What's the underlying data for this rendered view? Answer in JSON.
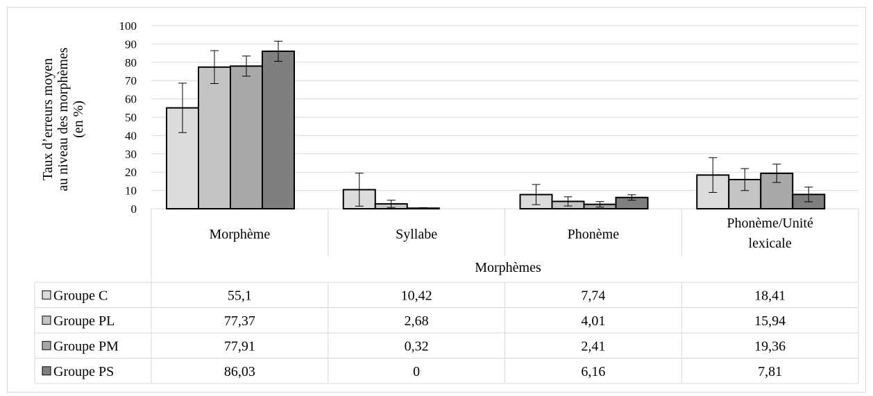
{
  "chart_data": {
    "type": "bar",
    "ylabel_lines": [
      "Taux d’erreurs moyen",
      "au niveau des morphèmes",
      "(en %)"
    ],
    "xlabel": "Morphèmes",
    "categories": [
      "Morphème",
      "Syllabe",
      "Phonème",
      "Phonème/Unité lexicale"
    ],
    "category_lines": [
      [
        "Morphème"
      ],
      [
        "Syllabe"
      ],
      [
        "Phonème"
      ],
      [
        "Phonème/Unité",
        "lexicale"
      ]
    ],
    "ylim": [
      0,
      100
    ],
    "yticks": [
      0,
      10,
      20,
      30,
      40,
      50,
      60,
      70,
      80,
      90,
      100
    ],
    "grid": true,
    "series": [
      {
        "name": "Groupe C",
        "color": "#dcdcdc",
        "values": [
          55.1,
          10.42,
          7.74,
          18.41
        ],
        "value_labels": [
          "55,1",
          "10,42",
          "7,74",
          "18,41"
        ],
        "errors": [
          13.5,
          9,
          5.5,
          9.5
        ]
      },
      {
        "name": "Groupe PL",
        "color": "#c4c4c4",
        "values": [
          77.37,
          2.68,
          4.01,
          15.94
        ],
        "value_labels": [
          "77,37",
          "2,68",
          "4,01",
          "15,94"
        ],
        "errors": [
          9,
          2,
          2.5,
          6
        ]
      },
      {
        "name": "Groupe PM",
        "color": "#a8a8a8",
        "values": [
          77.91,
          0.32,
          2.41,
          19.36
        ],
        "value_labels": [
          "77,91",
          "0,32",
          "2,41",
          "19,36"
        ],
        "errors": [
          5.5,
          0.3,
          1.5,
          5
        ]
      },
      {
        "name": "Groupe PS",
        "color": "#7f7f7f",
        "values": [
          86.03,
          0,
          6.16,
          7.81
        ],
        "value_labels": [
          "86,03",
          "0",
          "6,16",
          "7,81"
        ],
        "errors": [
          5.5,
          0,
          1.5,
          4
        ]
      }
    ]
  }
}
